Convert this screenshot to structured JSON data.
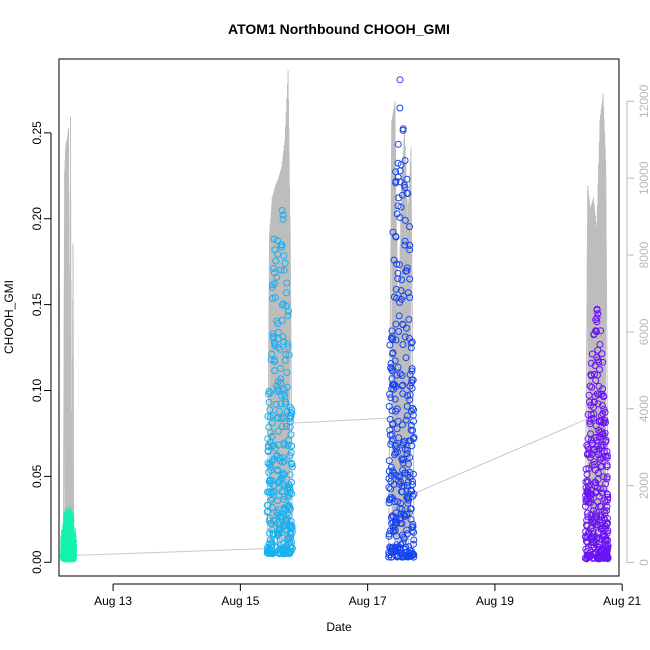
{
  "chart_data": {
    "type": "scatter",
    "title": "ATOM1 Northbound CHOOH_GMI",
    "xlabel": "Date",
    "ylabel": "CHOOH_GMI",
    "x_range_days": [
      12.15,
      20.95
    ],
    "x_ticks": [
      {
        "value": 13,
        "label": "Aug 13"
      },
      {
        "value": 15,
        "label": "Aug 15"
      },
      {
        "value": 17,
        "label": "Aug 17"
      },
      {
        "value": 19,
        "label": "Aug 19"
      },
      {
        "value": 21,
        "label": "Aug 21"
      }
    ],
    "ylim": [
      -0.008,
      0.293
    ],
    "y_ticks": [
      0.0,
      0.05,
      0.1,
      0.15,
      0.2,
      0.25
    ],
    "y_tick_labels": [
      "0.00",
      "0.05",
      "0.10",
      "0.15",
      "0.20",
      "0.25"
    ],
    "y2lim": [
      -350,
      13100
    ],
    "y2_ticks": [
      0,
      2000,
      4000,
      6000,
      8000,
      10000,
      12000
    ],
    "y2_tick_labels": [
      "0",
      "2000",
      "4000",
      "6000",
      "8000",
      "10000",
      "12000"
    ],
    "y2_color": "#bdbdbd",
    "series": [
      {
        "color": "#14f2b0",
        "x_range": [
          12.22,
          12.38
        ],
        "y_range": [
          0.002,
          0.031
        ],
        "altitude_profile": [
          [
            12.22,
            200
          ],
          [
            12.24,
            10200
          ],
          [
            12.26,
            10900
          ],
          [
            12.28,
            11000
          ],
          [
            12.3,
            11300
          ],
          [
            12.31,
            2000
          ],
          [
            12.33,
            11600
          ],
          [
            12.35,
            1000
          ],
          [
            12.37,
            8300
          ],
          [
            12.38,
            200
          ]
        ]
      },
      {
        "color": "#1ab0f0",
        "x_range": [
          15.42,
          15.82
        ],
        "y_range": [
          0.005,
          0.225
        ],
        "altitude_profile": [
          [
            15.42,
            200
          ],
          [
            15.46,
            8600
          ],
          [
            15.5,
            9500
          ],
          [
            15.55,
            9800
          ],
          [
            15.6,
            10000
          ],
          [
            15.65,
            10300
          ],
          [
            15.7,
            11000
          ],
          [
            15.75,
            12800
          ],
          [
            15.78,
            9000
          ],
          [
            15.82,
            200
          ]
        ]
      },
      {
        "color": "#1745ee",
        "x_range": [
          17.33,
          17.73
        ],
        "y_range": [
          0.003,
          0.285
        ],
        "altitude_profile": [
          [
            17.33,
            200
          ],
          [
            17.38,
            11500
          ],
          [
            17.43,
            12000
          ],
          [
            17.48,
            6000
          ],
          [
            17.53,
            9800
          ],
          [
            17.58,
            11300
          ],
          [
            17.63,
            9000
          ],
          [
            17.68,
            10800
          ],
          [
            17.73,
            200
          ]
        ]
      },
      {
        "color": "#6a14f2",
        "x_range": [
          20.42,
          20.78
        ],
        "y_range": [
          0.002,
          0.148
        ],
        "altitude_profile": [
          [
            20.42,
            200
          ],
          [
            20.46,
            9800
          ],
          [
            20.5,
            9200
          ],
          [
            20.55,
            9500
          ],
          [
            20.6,
            8700
          ],
          [
            20.65,
            11500
          ],
          [
            20.7,
            12200
          ],
          [
            20.74,
            10500
          ],
          [
            20.78,
            200
          ]
        ]
      }
    ],
    "connector_lines": [
      [
        [
          12.38,
          0.004
        ],
        [
          15.42,
          0.008
        ]
      ],
      [
        [
          15.82,
          0.081
        ],
        [
          17.33,
          0.084
        ]
      ],
      [
        [
          17.73,
          0.04
        ],
        [
          20.42,
          0.083
        ]
      ]
    ],
    "grid": false,
    "marker": "open circle"
  }
}
